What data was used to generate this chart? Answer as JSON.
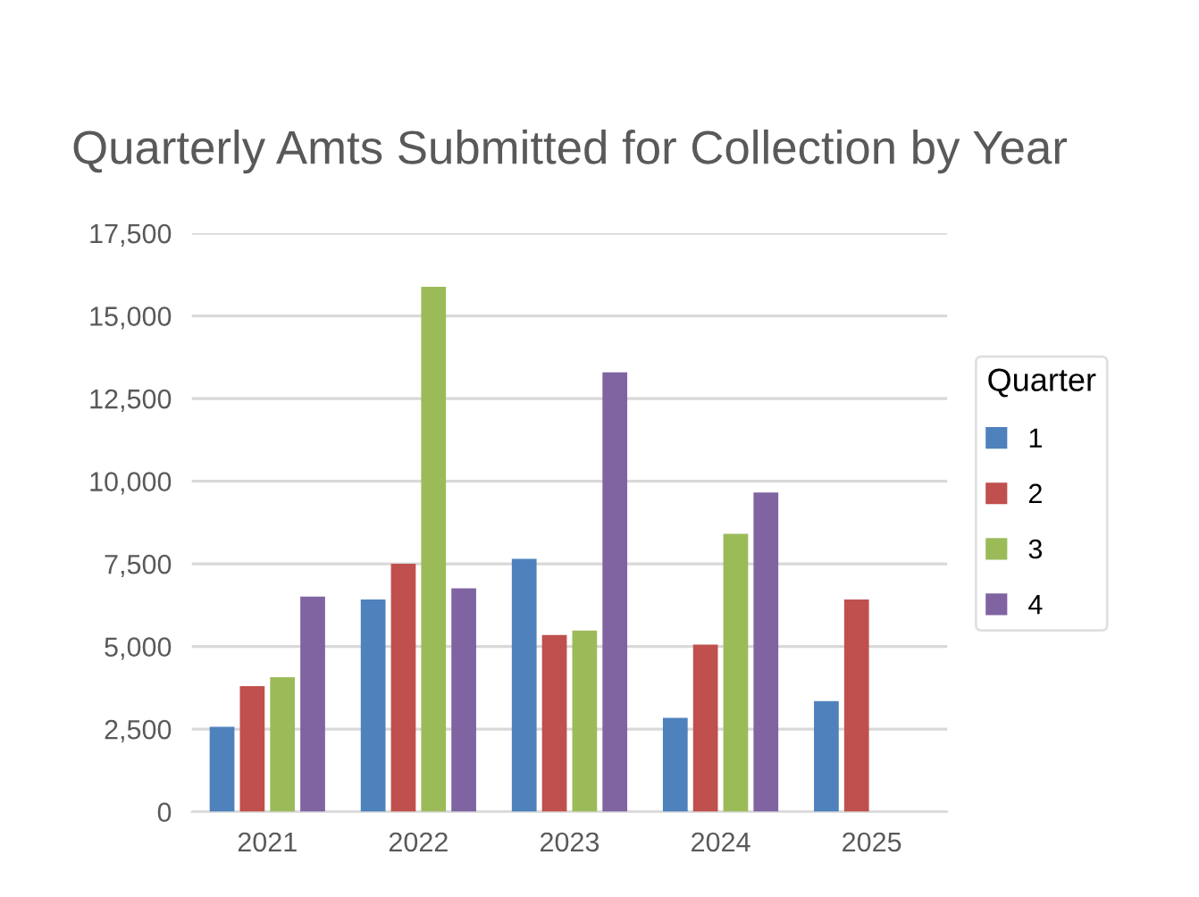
{
  "chart_data": {
    "type": "bar",
    "title": "Quarterly Amts Submitted for Collection by Year",
    "categories": [
      "2021",
      "2022",
      "2023",
      "2024",
      "2025"
    ],
    "series": [
      {
        "name": "1",
        "color": "#4f81bd",
        "values": [
          2570,
          6420,
          7650,
          2840,
          3350
        ]
      },
      {
        "name": "2",
        "color": "#c0504d",
        "values": [
          3800,
          7500,
          5350,
          5060,
          6420
        ]
      },
      {
        "name": "3",
        "color": "#9bbb59",
        "values": [
          4070,
          15880,
          5480,
          8410,
          null
        ]
      },
      {
        "name": "4",
        "color": "#8064a2",
        "values": [
          6510,
          6760,
          13290,
          9660,
          null
        ]
      }
    ],
    "legend_title": "Quarter",
    "legend": "right",
    "ylim": [
      0,
      17500
    ],
    "yticks": [
      {
        "value": 0,
        "label": "0"
      },
      {
        "value": 2500,
        "label": "2,500"
      },
      {
        "value": 5000,
        "label": "5,000"
      },
      {
        "value": 7500,
        "label": "7,500"
      },
      {
        "value": 10000,
        "label": "10,000"
      },
      {
        "value": 12500,
        "label": "12,500"
      },
      {
        "value": 15000,
        "label": "15,000"
      },
      {
        "value": 17500,
        "label": "17,500"
      }
    ],
    "grid": "y"
  }
}
